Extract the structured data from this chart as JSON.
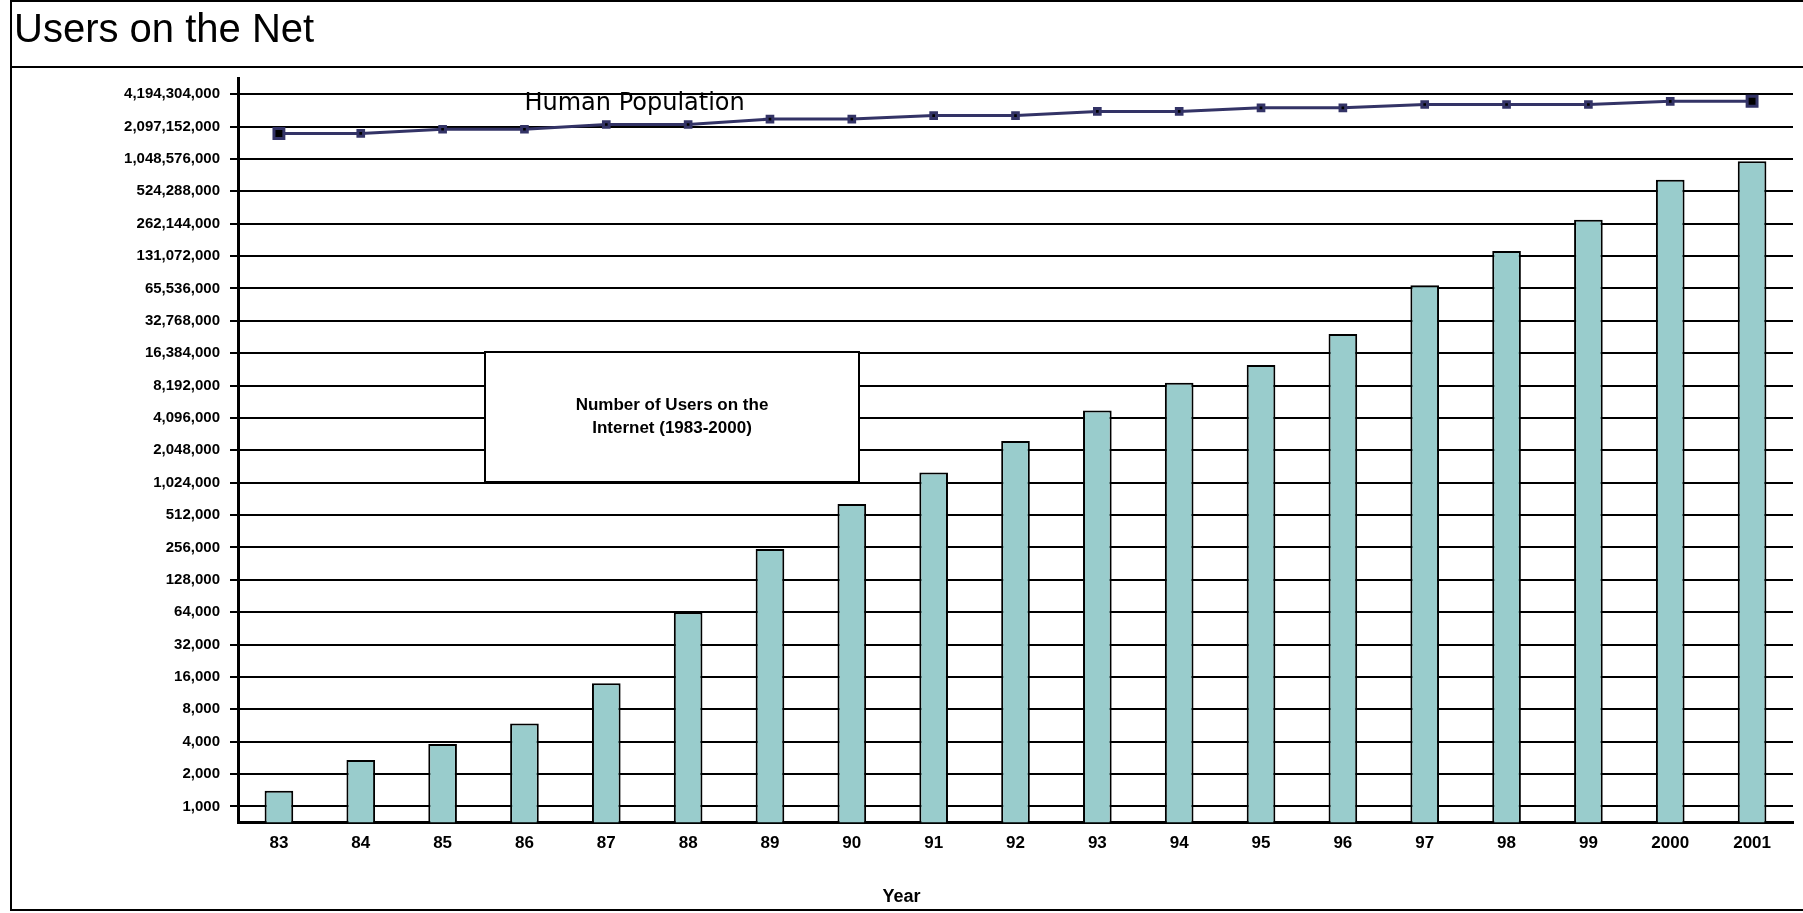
{
  "chart_data": {
    "type": "bar",
    "title": "Users on the Net",
    "xlabel": "Year",
    "categories": [
      "83",
      "84",
      "85",
      "86",
      "87",
      "88",
      "89",
      "90",
      "91",
      "92",
      "93",
      "94",
      "95",
      "96",
      "97",
      "98",
      "99",
      "2000",
      "2001"
    ],
    "series": [
      {
        "color": "#99cccc",
        "values": [
          1400,
          2700,
          3800,
          5900,
          14000,
          64000,
          247000,
          650000,
          1270000,
          2500000,
          4800000,
          8700000,
          12700000,
          24700000,
          70000000,
          146000000,
          285000000,
          670000000,
          1000000000
        ]
      },
      {
        "name": "Human Population",
        "type": "line",
        "color": "#333366",
        "values": [
          1810000000,
          1810000000,
          1980000000,
          1980000000,
          2190000000,
          2190000000,
          2460000000,
          2460000000,
          2650000000,
          2650000000,
          2900000000,
          2900000000,
          3130000000,
          3130000000,
          3360000000,
          3360000000,
          3360000000,
          3600000000,
          3600000000
        ]
      }
    ],
    "log": true,
    "ylim": [
      707,
      5930000000
    ],
    "yticks": [
      {
        "value": 1000,
        "label": "1,000"
      },
      {
        "value": 2000,
        "label": "2,000"
      },
      {
        "value": 4000,
        "label": "4,000"
      },
      {
        "value": 8000,
        "label": "8,000"
      },
      {
        "value": 16000,
        "label": "16,000"
      },
      {
        "value": 32000,
        "label": "32,000"
      },
      {
        "value": 64000,
        "label": "64,000"
      },
      {
        "value": 128000,
        "label": "128,000"
      },
      {
        "value": 256000,
        "label": "256,000"
      },
      {
        "value": 512000,
        "label": "512,000"
      },
      {
        "value": 1024000,
        "label": "1,024,000"
      },
      {
        "value": 2048000,
        "label": "2,048,000"
      },
      {
        "value": 4096000,
        "label": "4,096,000"
      },
      {
        "value": 8192000,
        "label": "8,192,000"
      },
      {
        "value": 16384000,
        "label": "16,384,000"
      },
      {
        "value": 32768000,
        "label": "32,768,000"
      },
      {
        "value": 65536000,
        "label": "65,536,000"
      },
      {
        "value": 131072000,
        "label": "131,072,000"
      },
      {
        "value": 262144000,
        "label": "262,144,000"
      },
      {
        "value": 524288000,
        "label": "524,288,000"
      },
      {
        "value": 1048576000,
        "label": "1,048,576,000"
      },
      {
        "value": 2097152000,
        "label": "2,097,152,000"
      },
      {
        "value": 4194304000,
        "label": "4,194,304,000"
      }
    ],
    "annotations": [
      "Number of Users on the Internet (1983-2000)"
    ],
    "grid": "y",
    "legend": false,
    "marker": "square"
  }
}
